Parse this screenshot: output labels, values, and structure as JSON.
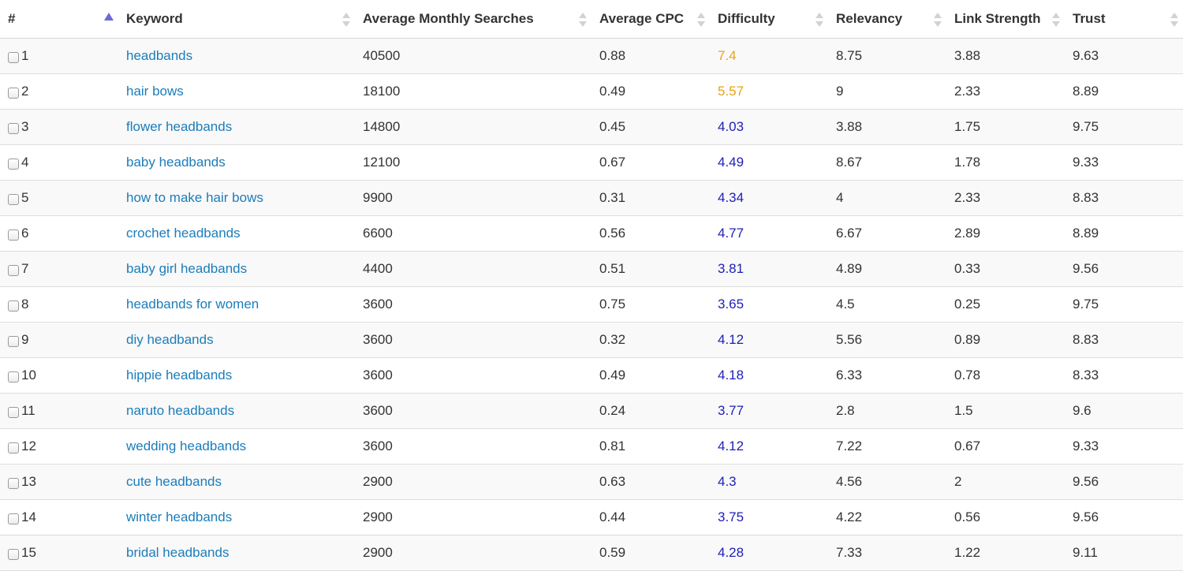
{
  "table": {
    "headers": {
      "num": "#",
      "keyword": "Keyword",
      "ams": "Average Monthly Searches",
      "cpc": "Average CPC",
      "difficulty": "Difficulty",
      "relevancy": "Relevancy",
      "link_strength": "Link Strength",
      "trust": "Trust"
    },
    "sorted_column": "num",
    "sort_direction": "ascending",
    "colors": {
      "link": "#1b7dbb",
      "difficulty_high": "#e8a317",
      "difficulty_mid": "#2020b8"
    },
    "rows": [
      {
        "num": "1",
        "keyword": "headbands",
        "ams": "40500",
        "cpc": "0.88",
        "difficulty": "7.4",
        "difficulty_level": "high",
        "relevancy": "8.75",
        "link_strength": "3.88",
        "trust": "9.63"
      },
      {
        "num": "2",
        "keyword": "hair bows",
        "ams": "18100",
        "cpc": "0.49",
        "difficulty": "5.57",
        "difficulty_level": "high",
        "relevancy": "9",
        "link_strength": "2.33",
        "trust": "8.89"
      },
      {
        "num": "3",
        "keyword": "flower headbands",
        "ams": "14800",
        "cpc": "0.45",
        "difficulty": "4.03",
        "difficulty_level": "mid",
        "relevancy": "3.88",
        "link_strength": "1.75",
        "trust": "9.75"
      },
      {
        "num": "4",
        "keyword": "baby headbands",
        "ams": "12100",
        "cpc": "0.67",
        "difficulty": "4.49",
        "difficulty_level": "mid",
        "relevancy": "8.67",
        "link_strength": "1.78",
        "trust": "9.33"
      },
      {
        "num": "5",
        "keyword": "how to make hair bows",
        "ams": "9900",
        "cpc": "0.31",
        "difficulty": "4.34",
        "difficulty_level": "mid",
        "relevancy": "4",
        "link_strength": "2.33",
        "trust": "8.83"
      },
      {
        "num": "6",
        "keyword": "crochet headbands",
        "ams": "6600",
        "cpc": "0.56",
        "difficulty": "4.77",
        "difficulty_level": "mid",
        "relevancy": "6.67",
        "link_strength": "2.89",
        "trust": "8.89"
      },
      {
        "num": "7",
        "keyword": "baby girl headbands",
        "ams": "4400",
        "cpc": "0.51",
        "difficulty": "3.81",
        "difficulty_level": "mid",
        "relevancy": "4.89",
        "link_strength": "0.33",
        "trust": "9.56"
      },
      {
        "num": "8",
        "keyword": "headbands for women",
        "ams": "3600",
        "cpc": "0.75",
        "difficulty": "3.65",
        "difficulty_level": "mid",
        "relevancy": "4.5",
        "link_strength": "0.25",
        "trust": "9.75"
      },
      {
        "num": "9",
        "keyword": "diy headbands",
        "ams": "3600",
        "cpc": "0.32",
        "difficulty": "4.12",
        "difficulty_level": "mid",
        "relevancy": "5.56",
        "link_strength": "0.89",
        "trust": "8.83"
      },
      {
        "num": "10",
        "keyword": "hippie headbands",
        "ams": "3600",
        "cpc": "0.49",
        "difficulty": "4.18",
        "difficulty_level": "mid",
        "relevancy": "6.33",
        "link_strength": "0.78",
        "trust": "8.33"
      },
      {
        "num": "11",
        "keyword": "naruto headbands",
        "ams": "3600",
        "cpc": "0.24",
        "difficulty": "3.77",
        "difficulty_level": "mid",
        "relevancy": "2.8",
        "link_strength": "1.5",
        "trust": "9.6"
      },
      {
        "num": "12",
        "keyword": "wedding headbands",
        "ams": "3600",
        "cpc": "0.81",
        "difficulty": "4.12",
        "difficulty_level": "mid",
        "relevancy": "7.22",
        "link_strength": "0.67",
        "trust": "9.33"
      },
      {
        "num": "13",
        "keyword": "cute headbands",
        "ams": "2900",
        "cpc": "0.63",
        "difficulty": "4.3",
        "difficulty_level": "mid",
        "relevancy": "4.56",
        "link_strength": "2",
        "trust": "9.56"
      },
      {
        "num": "14",
        "keyword": "winter headbands",
        "ams": "2900",
        "cpc": "0.44",
        "difficulty": "3.75",
        "difficulty_level": "mid",
        "relevancy": "4.22",
        "link_strength": "0.56",
        "trust": "9.56"
      },
      {
        "num": "15",
        "keyword": "bridal headbands",
        "ams": "2900",
        "cpc": "0.59",
        "difficulty": "4.28",
        "difficulty_level": "mid",
        "relevancy": "7.33",
        "link_strength": "1.22",
        "trust": "9.11"
      }
    ]
  }
}
